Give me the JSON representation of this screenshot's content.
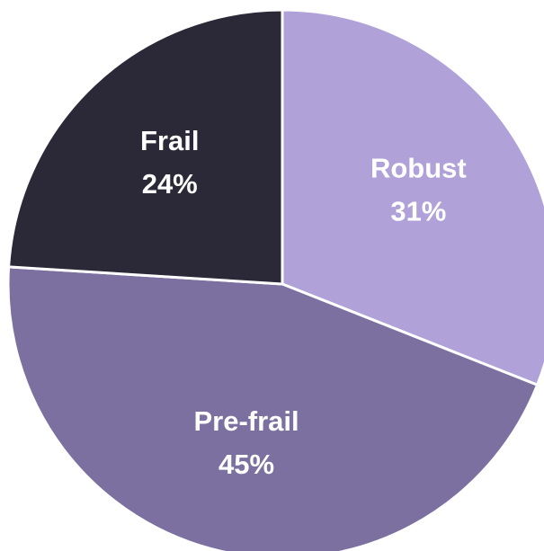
{
  "chart_data": {
    "type": "pie",
    "categories": [
      "Robust",
      "Pre-frail",
      "Frail"
    ],
    "values": [
      31,
      45,
      24
    ],
    "value_labels": [
      "31%",
      "45%",
      "24%"
    ],
    "colors": [
      "#b0a2d8",
      "#7b70a0",
      "#2b2838"
    ]
  }
}
